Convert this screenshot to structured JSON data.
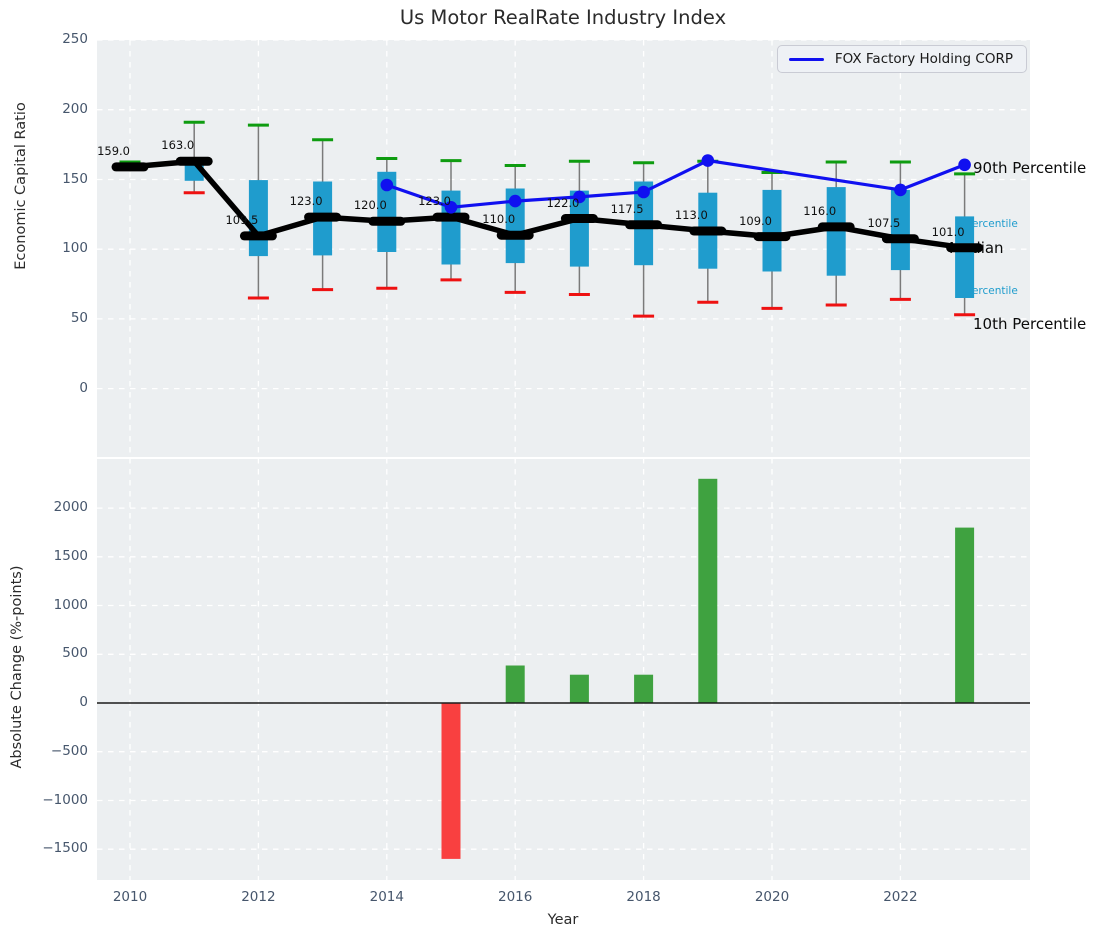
{
  "title": "Us Motor RealRate Industry Index",
  "legend": {
    "label": "FOX Factory Holding CORP"
  },
  "colors": {
    "box_fill": "#1f9ccd",
    "whisker": "#7a7a7a",
    "cap_high_green": "#0e9c10",
    "cap_low_red": "#ee1111",
    "median_line": "#000000",
    "fox_line": "#1010f0",
    "bar_positive": "#3fa240",
    "bar_negative": "#f94040",
    "plot_background": "#eceff1",
    "gridline": "#ffffff",
    "tick_label": "#46566c",
    "annotation_cyan": "#1f9ccd",
    "annotation_black": "#0a0a0a",
    "zero_line": "#1a1a1a"
  },
  "chart_data": [
    {
      "type": "boxplot+line",
      "title": "Us Motor RealRate Industry Index",
      "ylabel": "Economic Capital Ratio",
      "ylim": [
        -50,
        250
      ],
      "yticks": [
        0,
        50,
        100,
        150,
        200,
        250
      ],
      "ytick_labels": [
        "0",
        "50",
        "100",
        "150",
        "200",
        "250"
      ],
      "grid": true,
      "legend_position": "upper right",
      "years": [
        2010,
        2011,
        2012,
        2013,
        2014,
        2015,
        2016,
        2017,
        2018,
        2019,
        2020,
        2021,
        2022,
        2023
      ],
      "median": [
        159,
        163,
        109.5,
        123,
        120,
        123,
        110,
        122,
        117.5,
        113,
        109,
        116,
        107.5,
        101
      ],
      "median_labels": [
        "159.0",
        "163.0",
        "109.5",
        "123.0",
        "120.0",
        "123.0",
        "110.0",
        "122.0",
        "117.5",
        "113.0",
        "109.0",
        "116.0",
        "107.5",
        "101.0"
      ],
      "q75": [
        null,
        161,
        149.5,
        148.5,
        155.5,
        142,
        143.5,
        142,
        148.5,
        140.5,
        142.5,
        144.5,
        142.5,
        123.5
      ],
      "q25": [
        null,
        149,
        95,
        95.5,
        98,
        89,
        90,
        87.5,
        88.5,
        86,
        84,
        81,
        85,
        65
      ],
      "p90": [
        162.5,
        191,
        189,
        178.5,
        165,
        163.5,
        160,
        163,
        162,
        163,
        155,
        162.5,
        162.5,
        154
      ],
      "p10": [
        null,
        140.5,
        65,
        71,
        72,
        78,
        69,
        67.5,
        52,
        62,
        57.5,
        60,
        64,
        53
      ],
      "series": [
        {
          "name": "FOX Factory Holding CORP",
          "x": [
            2014,
            2015,
            2016,
            2017,
            2018,
            2019,
            2022,
            2023
          ],
          "y": [
            146,
            130,
            134.5,
            137.5,
            141,
            163.5,
            142.5,
            160.5
          ]
        }
      ],
      "annotations": [
        {
          "id": "p90",
          "text": "90th Percentile",
          "color": "#0a0a0a"
        },
        {
          "id": "p75",
          "text": "h Percentile",
          "color": "#1f9ccd"
        },
        {
          "id": "median",
          "text": "Median",
          "color": "#0a0a0a"
        },
        {
          "id": "p25",
          "text": "h Percentile",
          "color": "#1f9ccd"
        },
        {
          "id": "p10",
          "text": "10th Percentile",
          "color": "#0a0a0a"
        }
      ]
    },
    {
      "type": "bar",
      "xlabel": "Year",
      "ylabel": "Absolute Change (%-points)",
      "ylim": [
        -1820,
        2515
      ],
      "yticks": [
        2000,
        1500,
        1000,
        500,
        0,
        -500,
        -1000,
        -1500
      ],
      "ytick_labels": [
        "2000",
        "1500",
        "1000",
        "500",
        "0",
        "−500",
        "−1000",
        "−1500"
      ],
      "xticks": [
        2010,
        2012,
        2014,
        2016,
        2018,
        2020,
        2022
      ],
      "xtick_labels": [
        "2010",
        "2012",
        "2014",
        "2016",
        "2018",
        "2020",
        "2022"
      ],
      "grid": true,
      "bars": {
        "years": [
          2015,
          2016,
          2017,
          2018,
          2019,
          2023
        ],
        "values": [
          -1600,
          385,
          290,
          290,
          2300,
          1800
        ]
      }
    }
  ]
}
